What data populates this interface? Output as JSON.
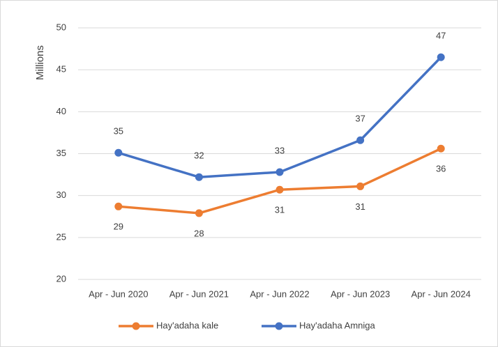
{
  "chart_data": {
    "type": "line",
    "y_label": "Millions",
    "categories": [
      "Apr - Jun 2020",
      "Apr - Jun 2021",
      "Apr - Jun 2022",
      "Apr - Jun 2023",
      "Apr - Jun 2024"
    ],
    "series": [
      {
        "name": "Hay'adaha kale",
        "color": "#ed7d31",
        "values": [
          28.7,
          27.9,
          30.7,
          31.1,
          35.6
        ],
        "value_labels": [
          "29",
          "28",
          "31",
          "31",
          "36"
        ]
      },
      {
        "name": "Hay'adaha Amniga",
        "color": "#4472c4",
        "values": [
          35.1,
          32.2,
          32.8,
          36.6,
          46.5
        ],
        "value_labels": [
          "35",
          "32",
          "33",
          "37",
          "47"
        ]
      }
    ],
    "ylim": [
      20,
      50
    ],
    "yticks": [
      20,
      25,
      30,
      35,
      40,
      45,
      50
    ],
    "grid": true,
    "legend": "bottom"
  }
}
